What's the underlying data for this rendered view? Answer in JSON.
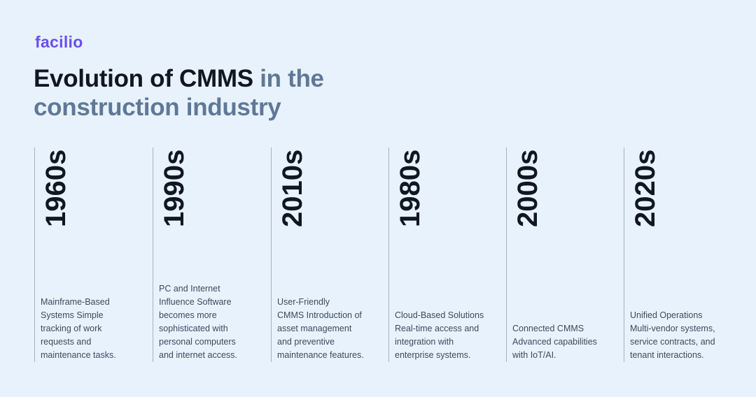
{
  "brand": {
    "logo": "facilio",
    "color": "#6b4ef0"
  },
  "title": {
    "strong": "Evolution of CMMS",
    "muted_line1": "in the",
    "muted_line2": "construction industry"
  },
  "columns": [
    {
      "year": "1960s",
      "lines": [
        "Mainframe-Based",
        "Systems Simple",
        "tracking of work",
        "requests and",
        "maintenance tasks."
      ]
    },
    {
      "year": "1990s",
      "lines": [
        "PC and Internet",
        "Influence Software",
        "becomes more",
        "sophisticated with",
        "personal computers",
        "and internet access."
      ]
    },
    {
      "year": "2010s",
      "lines": [
        "User-Friendly",
        "CMMS Introduction of",
        "asset management",
        "and preventive",
        "maintenance features."
      ]
    },
    {
      "year": "1980s",
      "lines": [
        "Cloud-Based Solutions",
        "Real-time access and",
        "integration with",
        "enterprise systems."
      ]
    },
    {
      "year": "2000s",
      "lines": [
        "Connected CMMS",
        "Advanced capabilities",
        "with IoT/AI."
      ]
    },
    {
      "year": "2020s",
      "lines": [
        "Unified Operations",
        "Multi-vendor systems,",
        "service contracts, and",
        "tenant interactions."
      ]
    }
  ]
}
